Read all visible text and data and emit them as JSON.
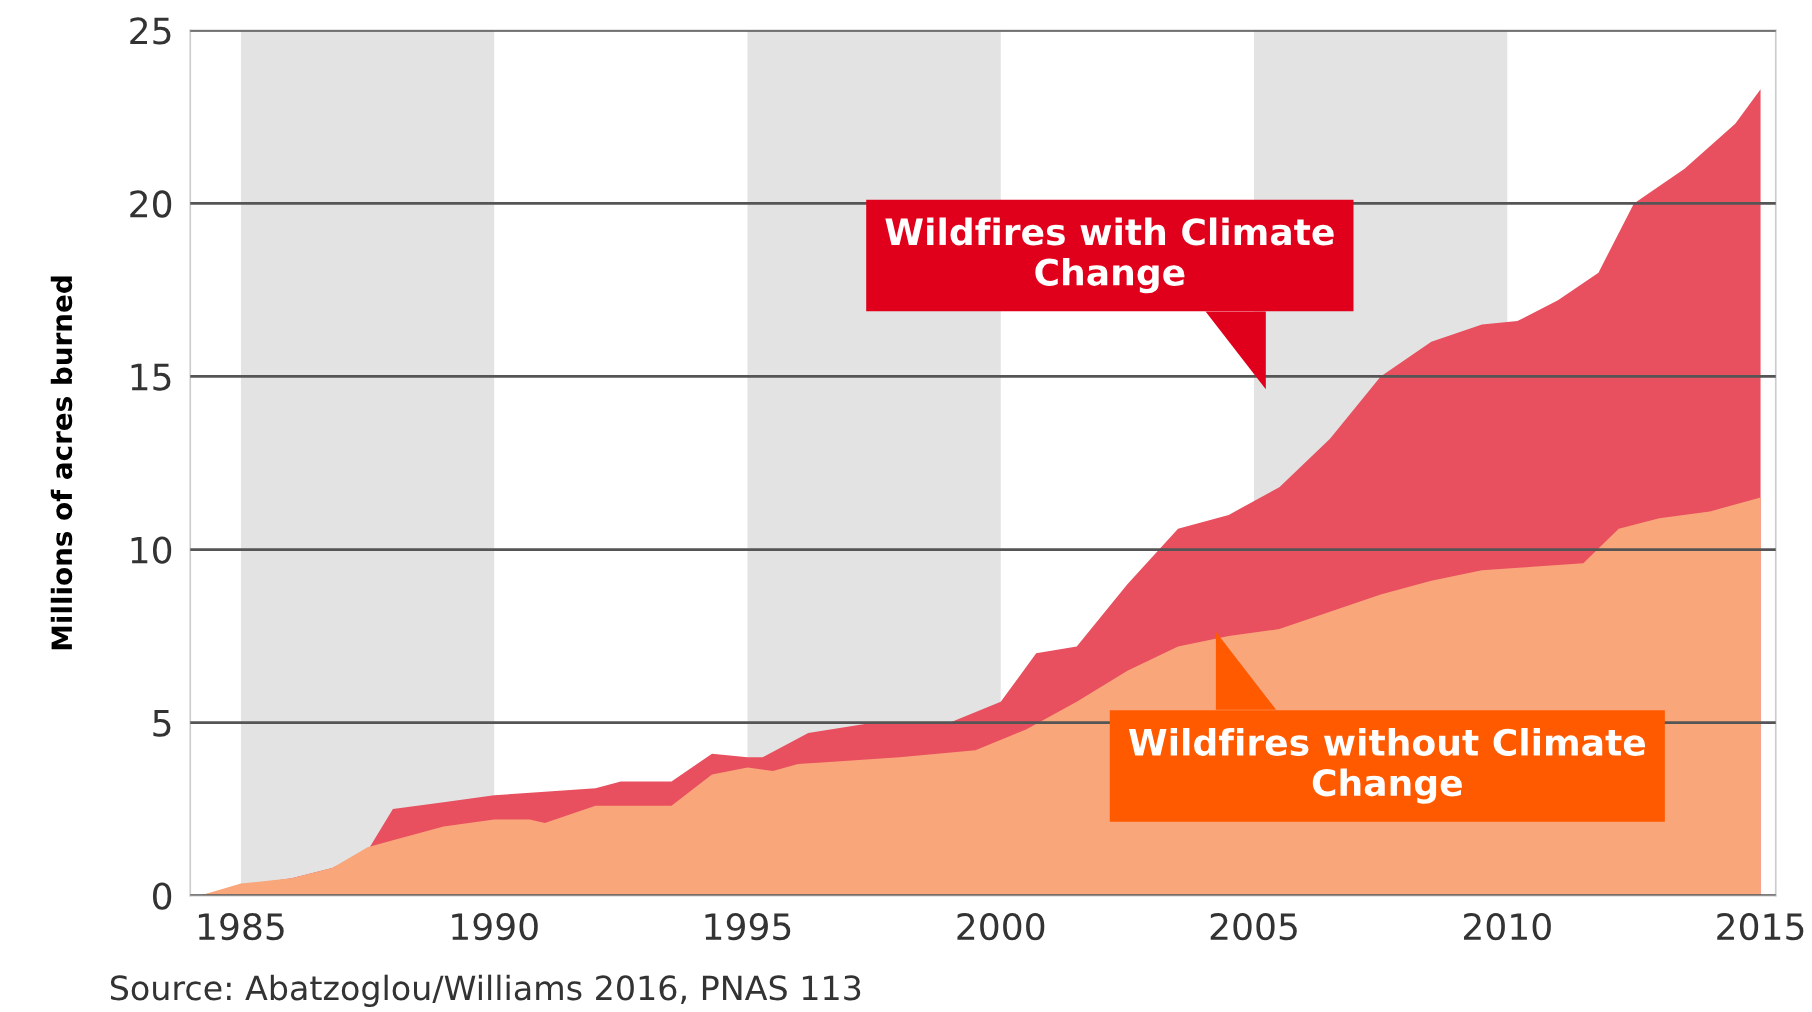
{
  "chart_data": {
    "type": "area",
    "ylabel": "Millions of acres burned",
    "annotations": [
      "Source: Abatzoglou/Williams 2016, PNAS 113"
    ],
    "series": [
      {
        "name": "Wildfires with Climate Change",
        "color": "#e8505f",
        "x": [
          1984.2,
          1985,
          1986,
          1986.8,
          1987.5,
          1988,
          1989,
          1990,
          1991,
          1992,
          1992.5,
          1993.5,
          1994.3,
          1995,
          1995.3,
          1996.2,
          1997.5,
          1999,
          2000,
          2000.7,
          2001.5,
          2002.5,
          2003.5,
          2004.5,
          2005.5,
          2006.5,
          2007.5,
          2008.5,
          2009.5,
          2010.2,
          2011,
          2011.8,
          2012.5,
          2013.5,
          2014.5,
          2015
        ],
        "values": [
          0,
          0.3,
          0.5,
          0.8,
          1.3,
          2.5,
          2.7,
          2.9,
          3.0,
          3.1,
          3.3,
          3.3,
          4.1,
          4.0,
          4.0,
          4.7,
          5.0,
          5.0,
          5.6,
          7.0,
          7.2,
          9.0,
          10.6,
          11.0,
          11.8,
          13.2,
          15.0,
          16.0,
          16.5,
          16.6,
          17.2,
          18.0,
          20.0,
          21.0,
          22.3,
          23.3
        ]
      },
      {
        "name": "Wildfires without Climate Change",
        "color": "#f9a77a",
        "x": [
          1984.2,
          1985,
          1986,
          1986.8,
          1987.5,
          1988,
          1989,
          1990,
          1990.7,
          1991,
          1992,
          1993.5,
          1994.3,
          1995,
          1995.5,
          1996,
          1998,
          1999.5,
          2000.5,
          2001.5,
          2002.5,
          2003.5,
          2004.5,
          2005.5,
          2006.5,
          2007.5,
          2008.5,
          2009.5,
          2010.5,
          2011.5,
          2012.2,
          2013,
          2014,
          2015
        ],
        "values": [
          0,
          0.35,
          0.5,
          0.8,
          1.4,
          1.6,
          2.0,
          2.2,
          2.2,
          2.1,
          2.6,
          2.6,
          3.5,
          3.7,
          3.6,
          3.8,
          4.0,
          4.2,
          4.8,
          5.6,
          6.5,
          7.2,
          7.5,
          7.7,
          8.2,
          8.7,
          9.1,
          9.4,
          9.5,
          9.6,
          10.6,
          10.9,
          11.1,
          11.5
        ]
      }
    ],
    "bands": [
      {
        "axis": "x",
        "from": 1985,
        "to": 1990,
        "color": "#e3e3e3"
      },
      {
        "axis": "x",
        "from": 1995,
        "to": 2000,
        "color": "#e3e3e3"
      },
      {
        "axis": "x",
        "from": 2005,
        "to": 2010,
        "color": "#e3e3e3"
      }
    ],
    "xlim": [
      1984,
      2015.3
    ],
    "xticks": [
      1985,
      1990,
      1995,
      2000,
      2005,
      2010,
      2015
    ],
    "ylim": [
      0,
      25
    ],
    "yticks": [
      0,
      5,
      10,
      15,
      20,
      25
    ],
    "grid": "y"
  }
}
